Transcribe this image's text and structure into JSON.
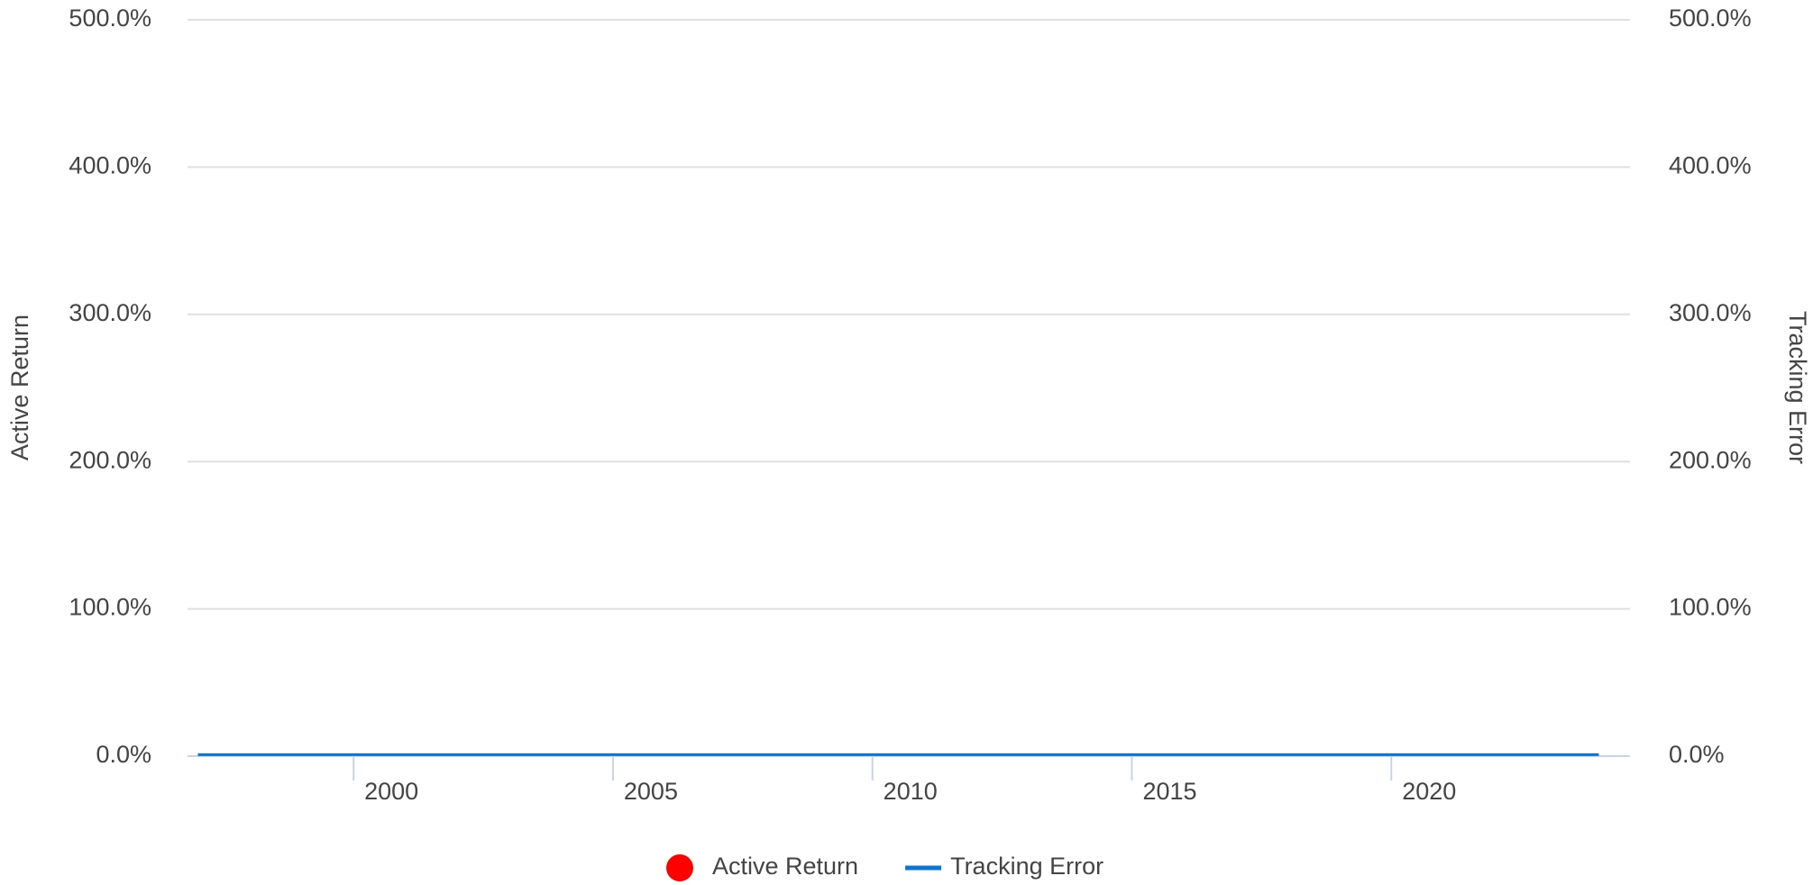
{
  "chart_data": {
    "type": "line",
    "y_label": "Active Return",
    "y2_label": "Tracking Error",
    "x": [
      1997,
      1998,
      1999,
      2000,
      2001,
      2002,
      2003,
      2004,
      2005,
      2006,
      2007,
      2008,
      2009,
      2010,
      2011,
      2012,
      2013,
      2014,
      2015,
      2016,
      2017,
      2018,
      2019,
      2020,
      2021,
      2022,
      2023,
      2024
    ],
    "series": [
      {
        "name": "Active Return",
        "color": "#ff0000",
        "marker": "circle",
        "values": [
          null,
          null,
          null,
          null,
          null,
          null,
          null,
          null,
          null,
          null,
          null,
          null,
          null,
          null,
          null,
          null,
          null,
          null,
          null,
          null,
          null,
          null,
          null,
          null,
          null,
          null,
          null,
          null
        ]
      },
      {
        "name": "Tracking Error",
        "color": "#0a74da",
        "axis": "y2",
        "values": [
          1,
          1,
          1,
          1,
          1,
          1,
          1,
          1,
          1,
          1,
          1,
          1,
          1,
          1,
          1,
          1,
          1,
          1,
          1,
          1,
          1,
          1,
          1,
          1,
          1,
          1,
          1,
          1
        ]
      }
    ],
    "xlim": [
      1996.8,
      2024.6
    ],
    "xticks": [
      2000,
      2005,
      2010,
      2015,
      2020
    ],
    "ylim": [
      0,
      500
    ],
    "yticks": [
      {
        "value": 0,
        "label": "0.0%"
      },
      {
        "value": 100,
        "label": "100.0%"
      },
      {
        "value": 200,
        "label": "200.0%"
      },
      {
        "value": 300,
        "label": "300.0%"
      },
      {
        "value": 400,
        "label": "400.0%"
      },
      {
        "value": 500,
        "label": "500.0%"
      }
    ],
    "y2lim": [
      0,
      500
    ],
    "y2ticks": [
      {
        "value": 0,
        "label": "0.0%"
      },
      {
        "value": 100,
        "label": "100.0%"
      },
      {
        "value": 200,
        "label": "200.0%"
      },
      {
        "value": 300,
        "label": "300.0%"
      },
      {
        "value": 400,
        "label": "400.0%"
      },
      {
        "value": 500,
        "label": "500.0%"
      }
    ],
    "grid": true
  }
}
